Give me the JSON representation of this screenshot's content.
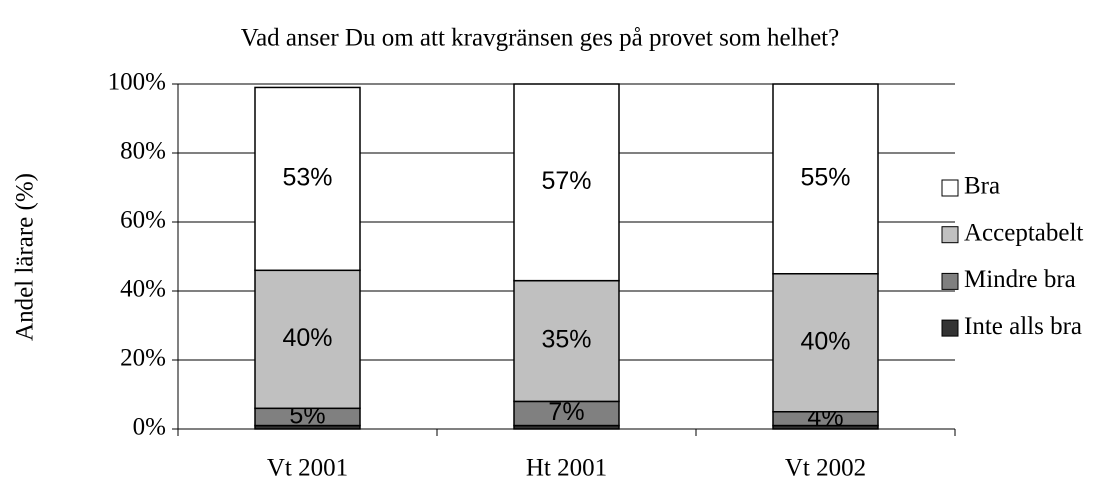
{
  "chart_data": {
    "type": "stacked_bar",
    "title": "Vad anser Du om att kravgränsen ges på provet som helhet?",
    "y_label": "Andel lärare (%)",
    "categories": [
      "Vt 2001",
      "Ht 2001",
      "Vt 2002"
    ],
    "series": [
      {
        "name": "Inte alls bra",
        "color": "#333333",
        "values": [
          1,
          1,
          1
        ]
      },
      {
        "name": "Mindre bra",
        "color": "#808080",
        "values": [
          5,
          7,
          4
        ],
        "value_labels": [
          "5%",
          "7%",
          "4%"
        ]
      },
      {
        "name": "Acceptabelt",
        "color": "#c0c0c0",
        "values": [
          40,
          35,
          40
        ],
        "value_labels": [
          "40%",
          "35%",
          "40%"
        ]
      },
      {
        "name": "Bra",
        "color": "#ffffff",
        "values": [
          53,
          57,
          55
        ],
        "value_labels": [
          "53%",
          "57%",
          "55%"
        ]
      }
    ],
    "ylim": [
      0,
      100
    ],
    "yticks": [
      {
        "value": 0,
        "label": "0%"
      },
      {
        "value": 20,
        "label": "20%"
      },
      {
        "value": 40,
        "label": "40%"
      },
      {
        "value": 60,
        "label": "60%"
      },
      {
        "value": 80,
        "label": "80%"
      },
      {
        "value": 100,
        "label": "100%"
      }
    ],
    "grid": true,
    "legend": "right"
  }
}
